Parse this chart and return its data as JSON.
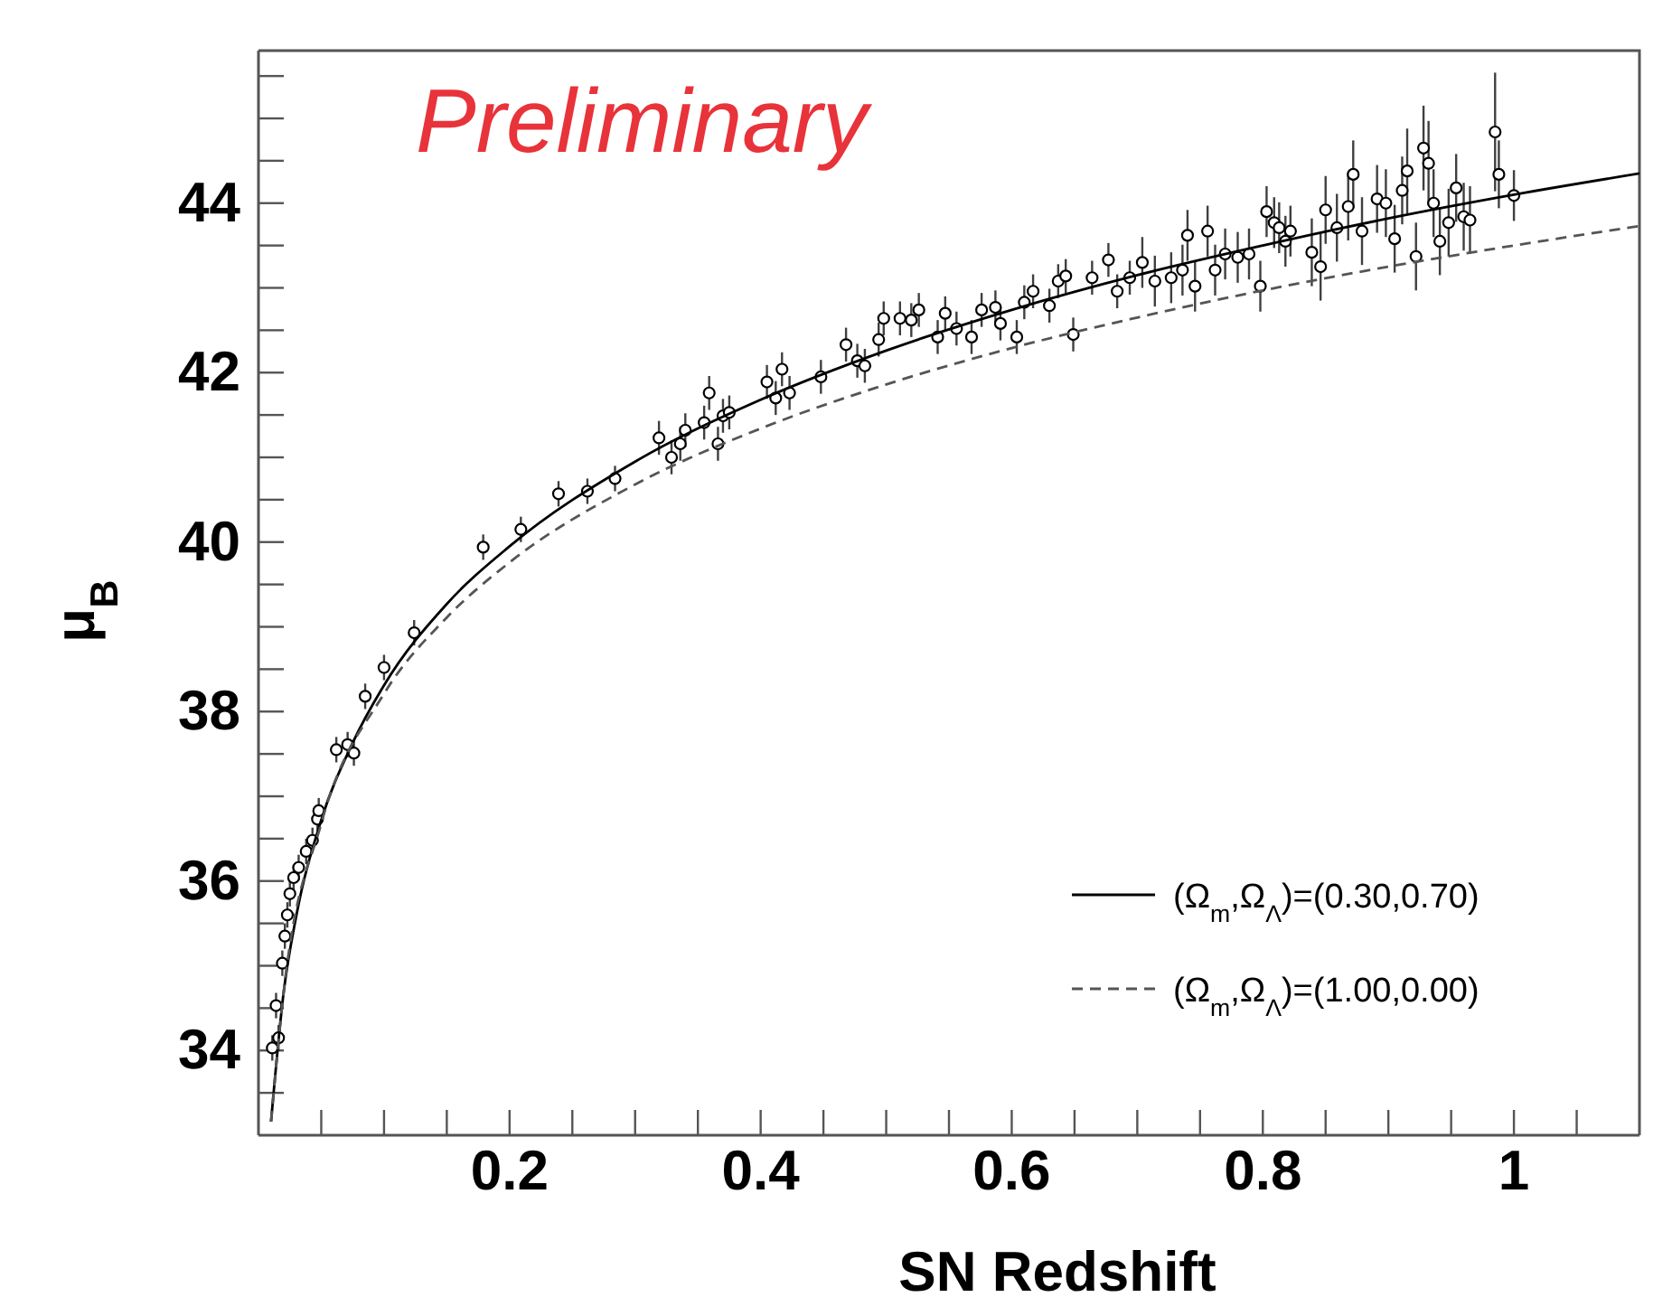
{
  "chart_data": {
    "type": "scatter",
    "xlabel": "SN Redshift",
    "ylabel": "μ$_{B}$",
    "annotations": [
      "Preliminary"
    ],
    "xlim": [
      0,
      1.1
    ],
    "ylim": [
      33,
      45.8
    ],
    "xticks": [
      {
        "value": 0.05,
        "label": null
      },
      {
        "value": 0.1,
        "label": null
      },
      {
        "value": 0.15,
        "label": null
      },
      0.2,
      {
        "value": 0.25,
        "label": null
      },
      {
        "value": 0.3,
        "label": null
      },
      {
        "value": 0.35,
        "label": null
      },
      0.4,
      {
        "value": 0.45,
        "label": null
      },
      {
        "value": 0.5,
        "label": null
      },
      {
        "value": 0.55,
        "label": null
      },
      0.6,
      {
        "value": 0.65,
        "label": null
      },
      {
        "value": 0.7,
        "label": null
      },
      {
        "value": 0.75,
        "label": null
      },
      0.8,
      {
        "value": 0.85,
        "label": null
      },
      {
        "value": 0.9,
        "label": null
      },
      {
        "value": 0.95,
        "label": null
      },
      1,
      {
        "value": 1.05,
        "label": null
      }
    ],
    "yticks": [
      {
        "value": 33.5,
        "label": null
      },
      34,
      {
        "value": 34.5,
        "label": null
      },
      {
        "value": 35,
        "label": null
      },
      {
        "value": 35.5,
        "label": null
      },
      36,
      {
        "value": 36.5,
        "label": null
      },
      {
        "value": 37,
        "label": null
      },
      {
        "value": 37.5,
        "label": null
      },
      38,
      {
        "value": 38.5,
        "label": null
      },
      {
        "value": 39,
        "label": null
      },
      {
        "value": 39.5,
        "label": null
      },
      40,
      {
        "value": 40.5,
        "label": null
      },
      {
        "value": 41,
        "label": null
      },
      {
        "value": 41.5,
        "label": null
      },
      42,
      {
        "value": 42.5,
        "label": null
      },
      {
        "value": 43,
        "label": null
      },
      {
        "value": 43.5,
        "label": null
      },
      44,
      {
        "value": 44.5,
        "label": null
      },
      {
        "value": 45,
        "label": null
      },
      {
        "value": 45.5,
        "label": null
      }
    ],
    "grid": false,
    "legend": "bottom right",
    "series": [
      {
        "color": "#000000",
        "marker": "circle",
        "x": [
          0.011,
          0.014,
          0.016,
          0.019,
          0.021,
          0.023,
          0.025,
          0.028,
          0.032,
          0.038,
          0.043,
          0.047,
          0.048,
          0.062,
          0.071,
          0.076,
          0.085,
          0.1,
          0.124,
          0.179,
          0.209,
          0.239,
          0.262,
          0.284,
          0.319,
          0.329,
          0.336,
          0.34,
          0.355,
          0.359,
          0.366,
          0.37,
          0.375,
          0.405,
          0.412,
          0.417,
          0.423,
          0.448,
          0.468,
          0.477,
          0.483,
          0.494,
          0.498,
          0.511,
          0.52,
          0.526,
          0.541,
          0.547,
          0.556,
          0.568,
          0.576,
          0.587,
          0.591,
          0.604,
          0.61,
          0.617,
          0.63,
          0.637,
          0.643,
          0.649,
          0.664,
          0.677,
          0.684,
          0.694,
          0.704,
          0.714,
          0.727,
          0.736,
          0.74,
          0.746,
          0.756,
          0.762,
          0.77,
          0.78,
          0.789,
          0.798,
          0.803,
          0.809,
          0.813,
          0.818,
          0.822,
          0.839,
          0.846,
          0.85,
          0.859,
          0.868,
          0.872,
          0.879,
          0.891,
          0.898,
          0.905,
          0.911,
          0.915,
          0.922,
          0.928,
          0.932,
          0.936,
          0.941,
          0.948,
          0.954,
          0.96,
          0.965,
          0.985,
          0.988,
          1.0
        ],
        "values": [
          34.03,
          34.53,
          34.15,
          35.03,
          35.35,
          35.6,
          35.85,
          36.04,
          36.16,
          36.35,
          36.48,
          36.73,
          36.83,
          37.55,
          37.61,
          37.51,
          38.18,
          38.52,
          38.93,
          39.94,
          40.15,
          40.57,
          40.6,
          40.75,
          41.23,
          41.0,
          41.16,
          41.32,
          41.41,
          41.76,
          41.16,
          41.49,
          41.53,
          41.89,
          41.7,
          42.04,
          41.76,
          41.95,
          42.33,
          42.14,
          42.08,
          42.39,
          42.64,
          42.64,
          42.62,
          42.74,
          42.42,
          42.7,
          42.52,
          42.42,
          42.74,
          42.77,
          42.58,
          42.42,
          42.83,
          42.96,
          42.79,
          43.08,
          43.14,
          42.45,
          43.12,
          43.33,
          42.96,
          43.12,
          43.3,
          43.08,
          43.12,
          43.21,
          43.62,
          43.02,
          43.67,
          43.21,
          43.4,
          43.36,
          43.4,
          43.02,
          43.9,
          43.77,
          43.71,
          43.55,
          43.67,
          43.42,
          43.25,
          43.92,
          43.71,
          43.96,
          44.34,
          43.67,
          44.05,
          44.0,
          43.58,
          44.15,
          44.38,
          43.37,
          44.65,
          44.47,
          44.0,
          43.55,
          43.77,
          44.18,
          43.84,
          43.8,
          44.84,
          44.34,
          44.09
        ],
        "errors": [
          0.15,
          0.15,
          0.15,
          0.15,
          0.15,
          0.15,
          0.15,
          0.15,
          0.15,
          0.15,
          0.15,
          0.15,
          0.15,
          0.15,
          0.15,
          0.15,
          0.15,
          0.15,
          0.15,
          0.15,
          0.15,
          0.15,
          0.15,
          0.15,
          0.2,
          0.2,
          0.2,
          0.2,
          0.2,
          0.2,
          0.2,
          0.2,
          0.2,
          0.2,
          0.2,
          0.2,
          0.2,
          0.2,
          0.2,
          0.2,
          0.2,
          0.2,
          0.2,
          0.2,
          0.2,
          0.2,
          0.2,
          0.2,
          0.2,
          0.2,
          0.2,
          0.2,
          0.2,
          0.2,
          0.2,
          0.2,
          0.2,
          0.2,
          0.2,
          0.2,
          0.2,
          0.2,
          0.2,
          0.2,
          0.3,
          0.3,
          0.3,
          0.3,
          0.3,
          0.3,
          0.3,
          0.3,
          0.3,
          0.3,
          0.3,
          0.3,
          0.3,
          0.3,
          0.3,
          0.3,
          0.3,
          0.4,
          0.4,
          0.4,
          0.4,
          0.4,
          0.4,
          0.4,
          0.4,
          0.4,
          0.4,
          0.4,
          0.5,
          0.4,
          0.5,
          0.5,
          0.4,
          0.4,
          0.4,
          0.4,
          0.4,
          0.4,
          0.7,
          0.4,
          0.3
        ]
      },
      {
        "type": "line",
        "name": "(Ω$_{m}$,Ω$_{Λ}$)=(0.30,0.70)",
        "color": "#000000",
        "line_style": "solid",
        "marker": "none",
        "x": [
          0.01,
          0.02,
          0.03,
          0.05,
          0.075,
          0.1,
          0.15,
          0.2,
          0.3,
          0.4,
          0.5,
          0.6,
          0.7,
          0.8,
          0.9,
          1.0,
          1.1
        ],
        "values": [
          33.16,
          34.68,
          35.58,
          36.72,
          37.63,
          38.31,
          39.27,
          39.95,
          40.95,
          41.68,
          42.26,
          42.74,
          43.15,
          43.5,
          43.82,
          44.1,
          44.35
        ]
      },
      {
        "type": "line",
        "name": "(Ω$_{m}$,Ω$_{Λ}$)=(1.00,0.00)",
        "color": "#555555",
        "line_style": "dashed",
        "marker": "none",
        "x": [
          0.01,
          0.02,
          0.05,
          0.1,
          0.15,
          0.2,
          0.3,
          0.4,
          0.5,
          0.6,
          0.7,
          0.8,
          0.9,
          1.0,
          1.1
        ],
        "values": [
          33.16,
          34.68,
          36.68,
          38.21,
          39.11,
          39.76,
          40.68,
          41.34,
          41.86,
          42.29,
          42.65,
          42.97,
          43.25,
          43.5,
          43.73
        ]
      }
    ]
  }
}
